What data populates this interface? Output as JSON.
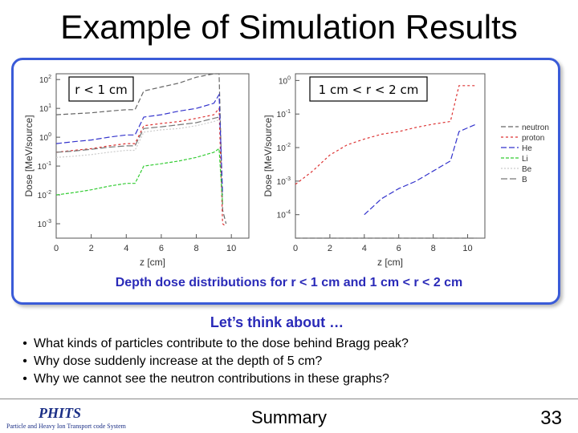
{
  "slide": {
    "title": "Example of Simulation Results",
    "caption": "Depth dose distributions for r < 1 cm and 1 cm < r < 2 cm",
    "think_heading": "Let’s think about …",
    "bullets": [
      "What kinds of particles contribute to the dose behind Bragg peak?",
      "Why dose suddenly increase at the depth of 5 cm?",
      "Why we cannot see the neutron contributions in these graphs?"
    ],
    "footer": {
      "logo_text": "PHITS",
      "logo_subtitle": "Particle and Heavy Ion Transport code System",
      "section": "Summary",
      "page_number": "33"
    }
  },
  "chart_data": [
    {
      "type": "line",
      "label": "r < 1 cm",
      "xlabel": "z [cm]",
      "ylabel": "Dose [MeV/source]",
      "xlim": [
        0,
        11
      ],
      "ylim_log10": [
        -3.5,
        2.2
      ],
      "xticks": [
        "0",
        "2",
        "4",
        "6",
        "8",
        "10"
      ],
      "yticks": [
        "10^-3",
        "10^-2",
        "10^-1",
        "10^0",
        "10^1",
        "10^2"
      ],
      "yscale": "log",
      "series": [
        {
          "name": "neutron",
          "color": "#666666",
          "x": [
            0,
            1,
            2,
            3,
            4,
            4.5,
            5,
            6,
            7,
            8,
            9,
            9.3,
            9.5,
            9.7
          ],
          "y": [
            6,
            6.5,
            7,
            8,
            9,
            9,
            40,
            55,
            75,
            120,
            200,
            300,
            0.003,
            0.001
          ]
        },
        {
          "name": "proton",
          "color": "#dd3333",
          "x": [
            0,
            1,
            2,
            3,
            4,
            4.5,
            5,
            6,
            7,
            8,
            9,
            9.3,
            9.5,
            9.7
          ],
          "y": [
            0.3,
            0.35,
            0.4,
            0.5,
            0.6,
            0.6,
            2.5,
            3,
            3.5,
            4.5,
            6,
            10,
            0.001,
            0.0008
          ]
        },
        {
          "name": "He",
          "color": "#3333cc",
          "x": [
            0,
            1,
            2,
            3,
            4,
            4.5,
            5,
            6,
            7,
            8,
            9,
            9.3,
            9.5
          ],
          "y": [
            0.6,
            0.7,
            0.8,
            1,
            1.2,
            1.2,
            5,
            6,
            8,
            10,
            15,
            30,
            0.01
          ]
        },
        {
          "name": "Li",
          "color": "#33cc33",
          "x": [
            0,
            1,
            2,
            3,
            4,
            4.5,
            5,
            6,
            7,
            8,
            9,
            9.3,
            9.5
          ],
          "y": [
            0.01,
            0.012,
            0.015,
            0.02,
            0.025,
            0.025,
            0.1,
            0.12,
            0.15,
            0.2,
            0.3,
            0.4,
            0.005
          ]
        },
        {
          "name": "Be",
          "color": "#cccccc",
          "x": [
            0,
            1,
            2,
            3,
            4,
            4.5,
            5,
            6,
            7,
            8,
            9,
            9.3
          ],
          "y": [
            0.2,
            0.22,
            0.25,
            0.3,
            0.35,
            0.35,
            1.5,
            1.8,
            2,
            2.5,
            3.5,
            4
          ]
        },
        {
          "name": "B",
          "color": "#777777",
          "x": [
            0,
            1,
            2,
            3,
            4,
            4.5,
            5,
            6,
            7,
            8,
            9,
            9.3
          ],
          "y": [
            0.3,
            0.33,
            0.38,
            0.45,
            0.5,
            0.5,
            2,
            2.3,
            2.7,
            3.2,
            4.5,
            5
          ]
        }
      ]
    },
    {
      "type": "line",
      "label": "1 cm < r < 2 cm",
      "xlabel": "z [cm]",
      "ylabel": "Dose [MeV/source]",
      "xlim": [
        0,
        11
      ],
      "ylim_log10": [
        -4.7,
        0.2
      ],
      "xticks": [
        "0",
        "2",
        "4",
        "6",
        "8",
        "10"
      ],
      "yticks": [
        "10^-4",
        "10^-3",
        "10^-2",
        "10^-1",
        "10^0"
      ],
      "yscale": "log",
      "series": [
        {
          "name": "neutron",
          "color": "#666666",
          "x": [
            0,
            10.5
          ],
          "y": [
            1e-05,
            1e-05
          ]
        },
        {
          "name": "proton",
          "color": "#dd3333",
          "x": [
            0,
            1,
            2,
            3,
            4,
            5,
            6,
            7,
            8,
            9,
            9.5,
            10.5
          ],
          "y": [
            0.0008,
            0.002,
            0.006,
            0.012,
            0.018,
            0.025,
            0.03,
            0.04,
            0.05,
            0.06,
            0.7,
            0.7
          ]
        },
        {
          "name": "He",
          "color": "#3333cc",
          "x": [
            4,
            5,
            6,
            7,
            8,
            9,
            9.5,
            10.5
          ],
          "y": [
            0.0001,
            0.0003,
            0.0006,
            0.001,
            0.002,
            0.004,
            0.03,
            0.05
          ]
        },
        {
          "name": "Li",
          "color": "#33cc33",
          "x": [],
          "y": []
        },
        {
          "name": "Be",
          "color": "#cccccc",
          "x": [],
          "y": []
        },
        {
          "name": "B",
          "color": "#777777",
          "x": [],
          "y": []
        }
      ]
    }
  ]
}
